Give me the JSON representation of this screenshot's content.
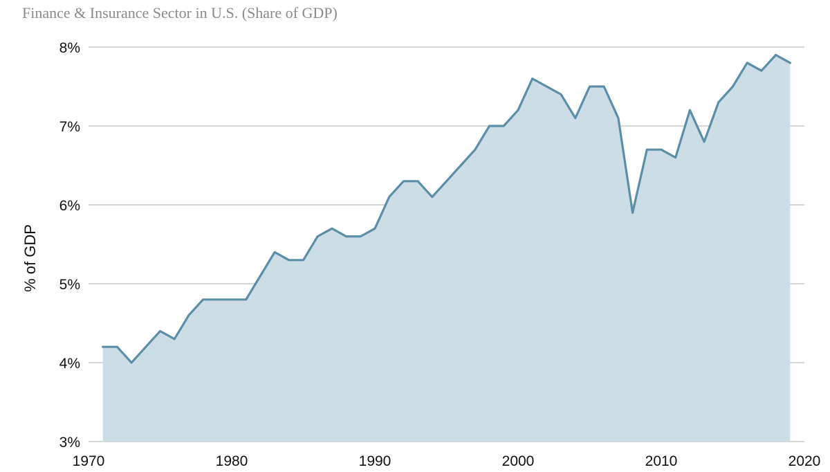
{
  "chart_data": {
    "type": "area",
    "title": "Finance & Insurance Sector in U.S. (Share of GDP)",
    "xlabel": "",
    "ylabel": "% of GDP",
    "xlim": [
      1970,
      2020
    ],
    "ylim": [
      3,
      8
    ],
    "xticks": [
      1970,
      1980,
      1990,
      2000,
      2010,
      2020
    ],
    "xtick_labels": [
      "1970",
      "1980",
      "1990",
      "2000",
      "2010",
      "2020"
    ],
    "yticks": [
      3,
      4,
      5,
      6,
      7,
      8
    ],
    "ytick_labels": [
      "3%",
      "4%",
      "5%",
      "6%",
      "7%",
      "8%"
    ],
    "grid": "horizontal",
    "legend": "none",
    "colors": {
      "line": "#5b8ea8",
      "fill": "#ccdde6",
      "grid": "#c8c8c8"
    },
    "x": [
      1971,
      1972,
      1973,
      1974,
      1975,
      1976,
      1977,
      1978,
      1979,
      1980,
      1981,
      1982,
      1983,
      1984,
      1985,
      1986,
      1987,
      1988,
      1989,
      1990,
      1991,
      1992,
      1993,
      1994,
      1995,
      1996,
      1997,
      1998,
      1999,
      2000,
      2001,
      2002,
      2003,
      2004,
      2005,
      2006,
      2007,
      2008,
      2009,
      2010,
      2011,
      2012,
      2013,
      2014,
      2015,
      2016,
      2017,
      2018,
      2019
    ],
    "series": [
      {
        "values": [
          4.2,
          4.2,
          4.0,
          4.2,
          4.4,
          4.3,
          4.6,
          4.8,
          4.8,
          4.8,
          4.8,
          5.1,
          5.4,
          5.3,
          5.3,
          5.6,
          5.7,
          5.6,
          5.6,
          5.7,
          6.1,
          6.3,
          6.3,
          6.1,
          6.3,
          6.5,
          6.7,
          7.0,
          7.0,
          7.2,
          7.6,
          7.5,
          7.4,
          7.1,
          7.5,
          7.5,
          7.1,
          5.9,
          6.7,
          6.7,
          6.6,
          7.2,
          6.8,
          7.3,
          7.5,
          7.8,
          7.7,
          7.9,
          7.8
        ]
      }
    ]
  }
}
